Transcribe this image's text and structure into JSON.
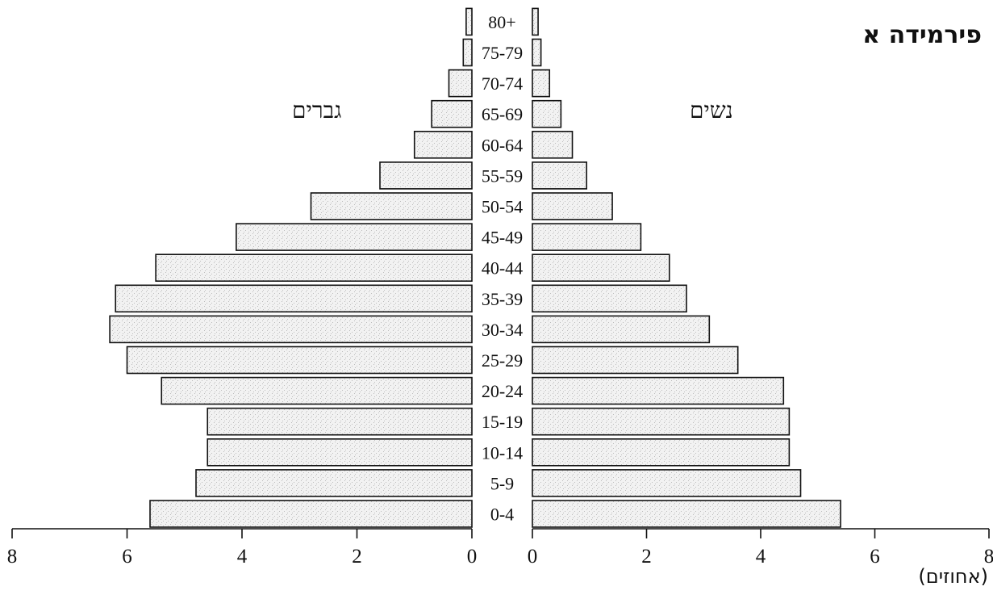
{
  "chart_data": {
    "type": "bar",
    "title": "פירמידה א",
    "left_label": "גברים",
    "right_label": "נשים",
    "unit_label": "(אחוזים)",
    "categories": [
      "0-4",
      "5-9",
      "10-14",
      "15-19",
      "20-24",
      "25-29",
      "30-34",
      "35-39",
      "40-44",
      "45-49",
      "50-54",
      "55-59",
      "60-64",
      "65-69",
      "70-74",
      "75-79",
      "80+"
    ],
    "series": [
      {
        "name": "גברים",
        "values": [
          5.6,
          4.8,
          4.6,
          4.6,
          5.4,
          6.0,
          6.3,
          6.2,
          5.5,
          4.1,
          2.8,
          1.6,
          1.0,
          0.7,
          0.4,
          0.15,
          0.1
        ]
      },
      {
        "name": "נשים",
        "values": [
          5.4,
          4.7,
          4.5,
          4.5,
          4.4,
          3.6,
          3.1,
          2.7,
          2.4,
          1.9,
          1.4,
          0.95,
          0.7,
          0.5,
          0.3,
          0.15,
          0.1
        ]
      }
    ],
    "xlim": [
      0,
      8
    ],
    "ticks": [
      0,
      2,
      4,
      6,
      8
    ],
    "tick_labels": [
      "0",
      "2",
      "4",
      "6",
      "8"
    ],
    "orientation": "horizontal-pyramid",
    "grid": false,
    "colors": {
      "bar_fill": "#f2f2f2",
      "bar_stroke": "#111111"
    }
  }
}
